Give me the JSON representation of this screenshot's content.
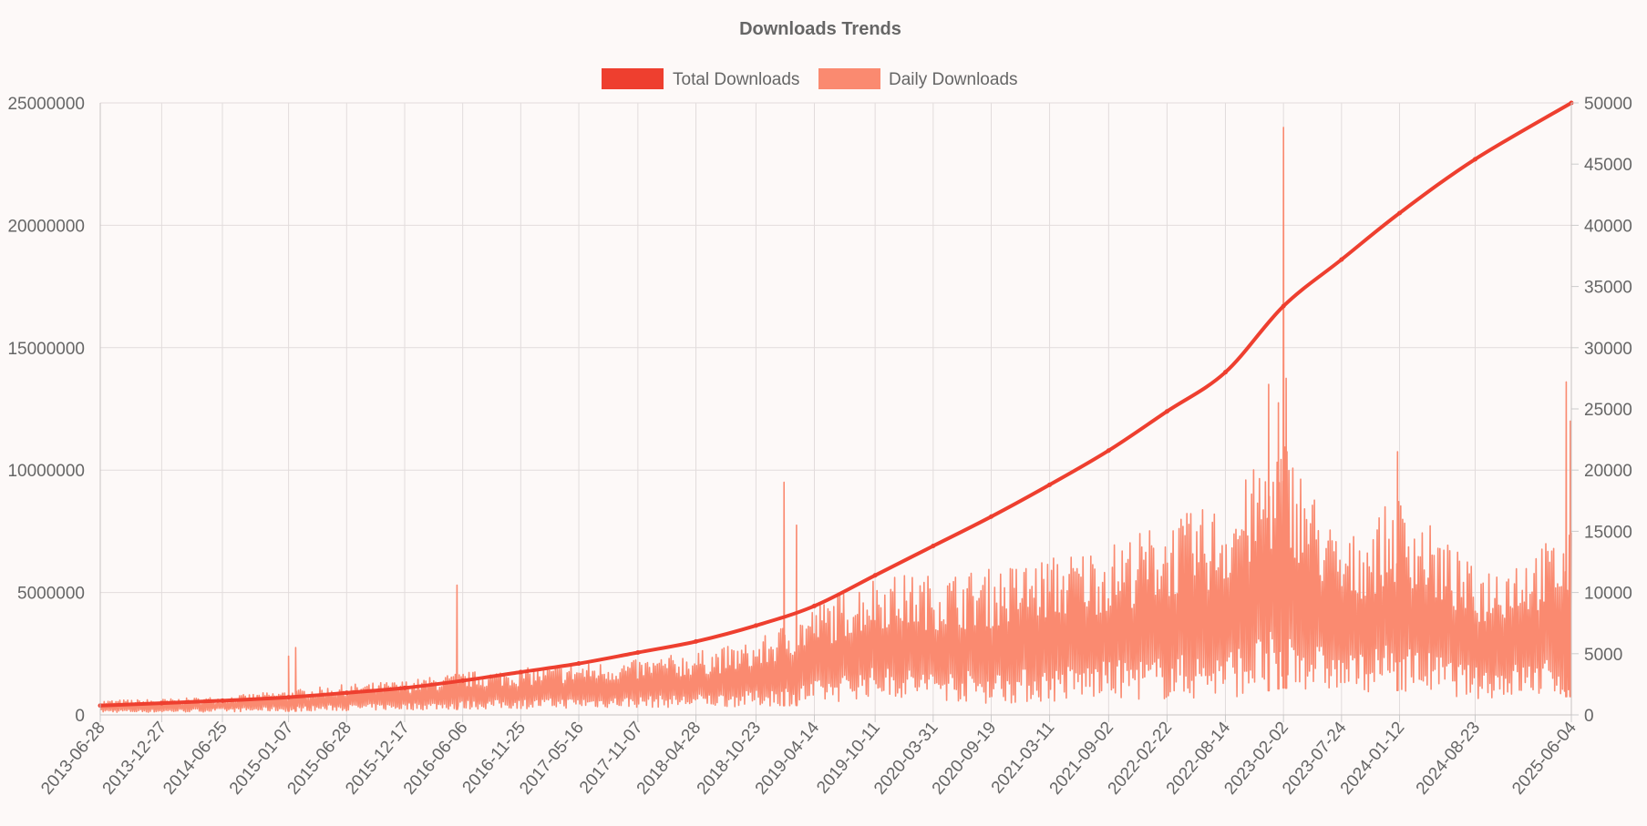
{
  "chart_data": {
    "type": "line",
    "title": "Downloads Trends",
    "legend_position": "top-center",
    "grid": true,
    "x_ticks": [
      "2013-06-28",
      "2013-12-27",
      "2014-06-25",
      "2015-01-07",
      "2015-06-28",
      "2015-12-17",
      "2016-06-06",
      "2016-11-25",
      "2017-05-16",
      "2017-11-07",
      "2018-04-28",
      "2018-10-23",
      "2019-04-14",
      "2019-10-11",
      "2020-03-31",
      "2020-09-19",
      "2021-03-11",
      "2021-09-02",
      "2022-02-22",
      "2022-08-14",
      "2023-02-02",
      "2023-07-24",
      "2024-01-12",
      "2024-08-23",
      "2025-06-04"
    ],
    "y_left": {
      "ylim": [
        0,
        25000000
      ],
      "ticks": [
        "0",
        "5000000",
        "10000000",
        "15000000",
        "20000000",
        "25000000"
      ]
    },
    "y_right": {
      "ylim": [
        0,
        50000
      ],
      "ticks": [
        "0",
        "5000",
        "10000",
        "15000",
        "20000",
        "25000",
        "30000",
        "35000",
        "40000",
        "45000",
        "50000"
      ]
    },
    "series": [
      {
        "name": "Total Downloads",
        "axis": "left",
        "color": "#ee3f2f",
        "points": [
          [
            "2013-06-28",
            380000
          ],
          [
            "2013-12-27",
            480000
          ],
          [
            "2014-06-25",
            580000
          ],
          [
            "2015-01-07",
            720000
          ],
          [
            "2015-06-28",
            900000
          ],
          [
            "2015-12-17",
            1100000
          ],
          [
            "2016-06-06",
            1400000
          ],
          [
            "2016-11-25",
            1750000
          ],
          [
            "2017-05-16",
            2100000
          ],
          [
            "2017-11-07",
            2550000
          ],
          [
            "2018-04-28",
            3000000
          ],
          [
            "2018-10-23",
            3650000
          ],
          [
            "2019-04-14",
            4450000
          ],
          [
            "2019-10-11",
            5700000
          ],
          [
            "2020-03-31",
            6900000
          ],
          [
            "2020-09-19",
            8100000
          ],
          [
            "2021-03-11",
            9400000
          ],
          [
            "2021-09-02",
            10800000
          ],
          [
            "2022-02-22",
            12400000
          ],
          [
            "2022-08-14",
            14000000
          ],
          [
            "2023-02-02",
            16700000
          ],
          [
            "2023-07-24",
            18600000
          ],
          [
            "2024-01-12",
            20500000
          ],
          [
            "2024-08-23",
            22700000
          ],
          [
            "2025-06-04",
            25000000
          ]
        ]
      },
      {
        "name": "Daily Downloads",
        "axis": "right",
        "color": "#fa8a70",
        "envelope": [
          [
            "2013-06-28",
            200,
            1200
          ],
          [
            "2013-12-27",
            200,
            1300
          ],
          [
            "2014-06-25",
            250,
            1500
          ],
          [
            "2015-01-07",
            300,
            2000
          ],
          [
            "2015-06-28",
            350,
            2500
          ],
          [
            "2015-12-17",
            400,
            2800
          ],
          [
            "2016-06-06",
            450,
            3500
          ],
          [
            "2016-11-25",
            500,
            3800
          ],
          [
            "2017-05-16",
            550,
            4200
          ],
          [
            "2017-11-07",
            600,
            4500
          ],
          [
            "2018-04-28",
            600,
            5200
          ],
          [
            "2018-10-23",
            700,
            6000
          ],
          [
            "2019-04-14",
            800,
            9000
          ],
          [
            "2019-10-11",
            1500,
            11500
          ],
          [
            "2020-03-31",
            1200,
            11500
          ],
          [
            "2020-09-19",
            900,
            12000
          ],
          [
            "2021-03-11",
            1000,
            13000
          ],
          [
            "2021-09-02",
            1300,
            14000
          ],
          [
            "2022-02-22",
            1200,
            16000
          ],
          [
            "2022-08-14",
            1300,
            17500
          ],
          [
            "2023-02-02",
            2200,
            23000
          ],
          [
            "2023-07-24",
            1800,
            14000
          ],
          [
            "2024-01-12",
            2000,
            18000
          ],
          [
            "2024-08-23",
            1300,
            12000
          ],
          [
            "2025-06-04",
            1500,
            15000
          ]
        ],
        "spikes": [
          [
            "2015-01-07",
            4800
          ],
          [
            "2015-01-28",
            5500
          ],
          [
            "2016-05-20",
            10600
          ],
          [
            "2019-01-14",
            19000
          ],
          [
            "2019-02-20",
            15500
          ],
          [
            "2022-12-20",
            27000
          ],
          [
            "2023-01-18",
            25500
          ],
          [
            "2023-02-02",
            48000
          ],
          [
            "2023-02-10",
            27500
          ],
          [
            "2024-01-06",
            21500
          ],
          [
            "2025-05-20",
            27200
          ],
          [
            "2025-06-01",
            24000
          ]
        ]
      }
    ]
  }
}
